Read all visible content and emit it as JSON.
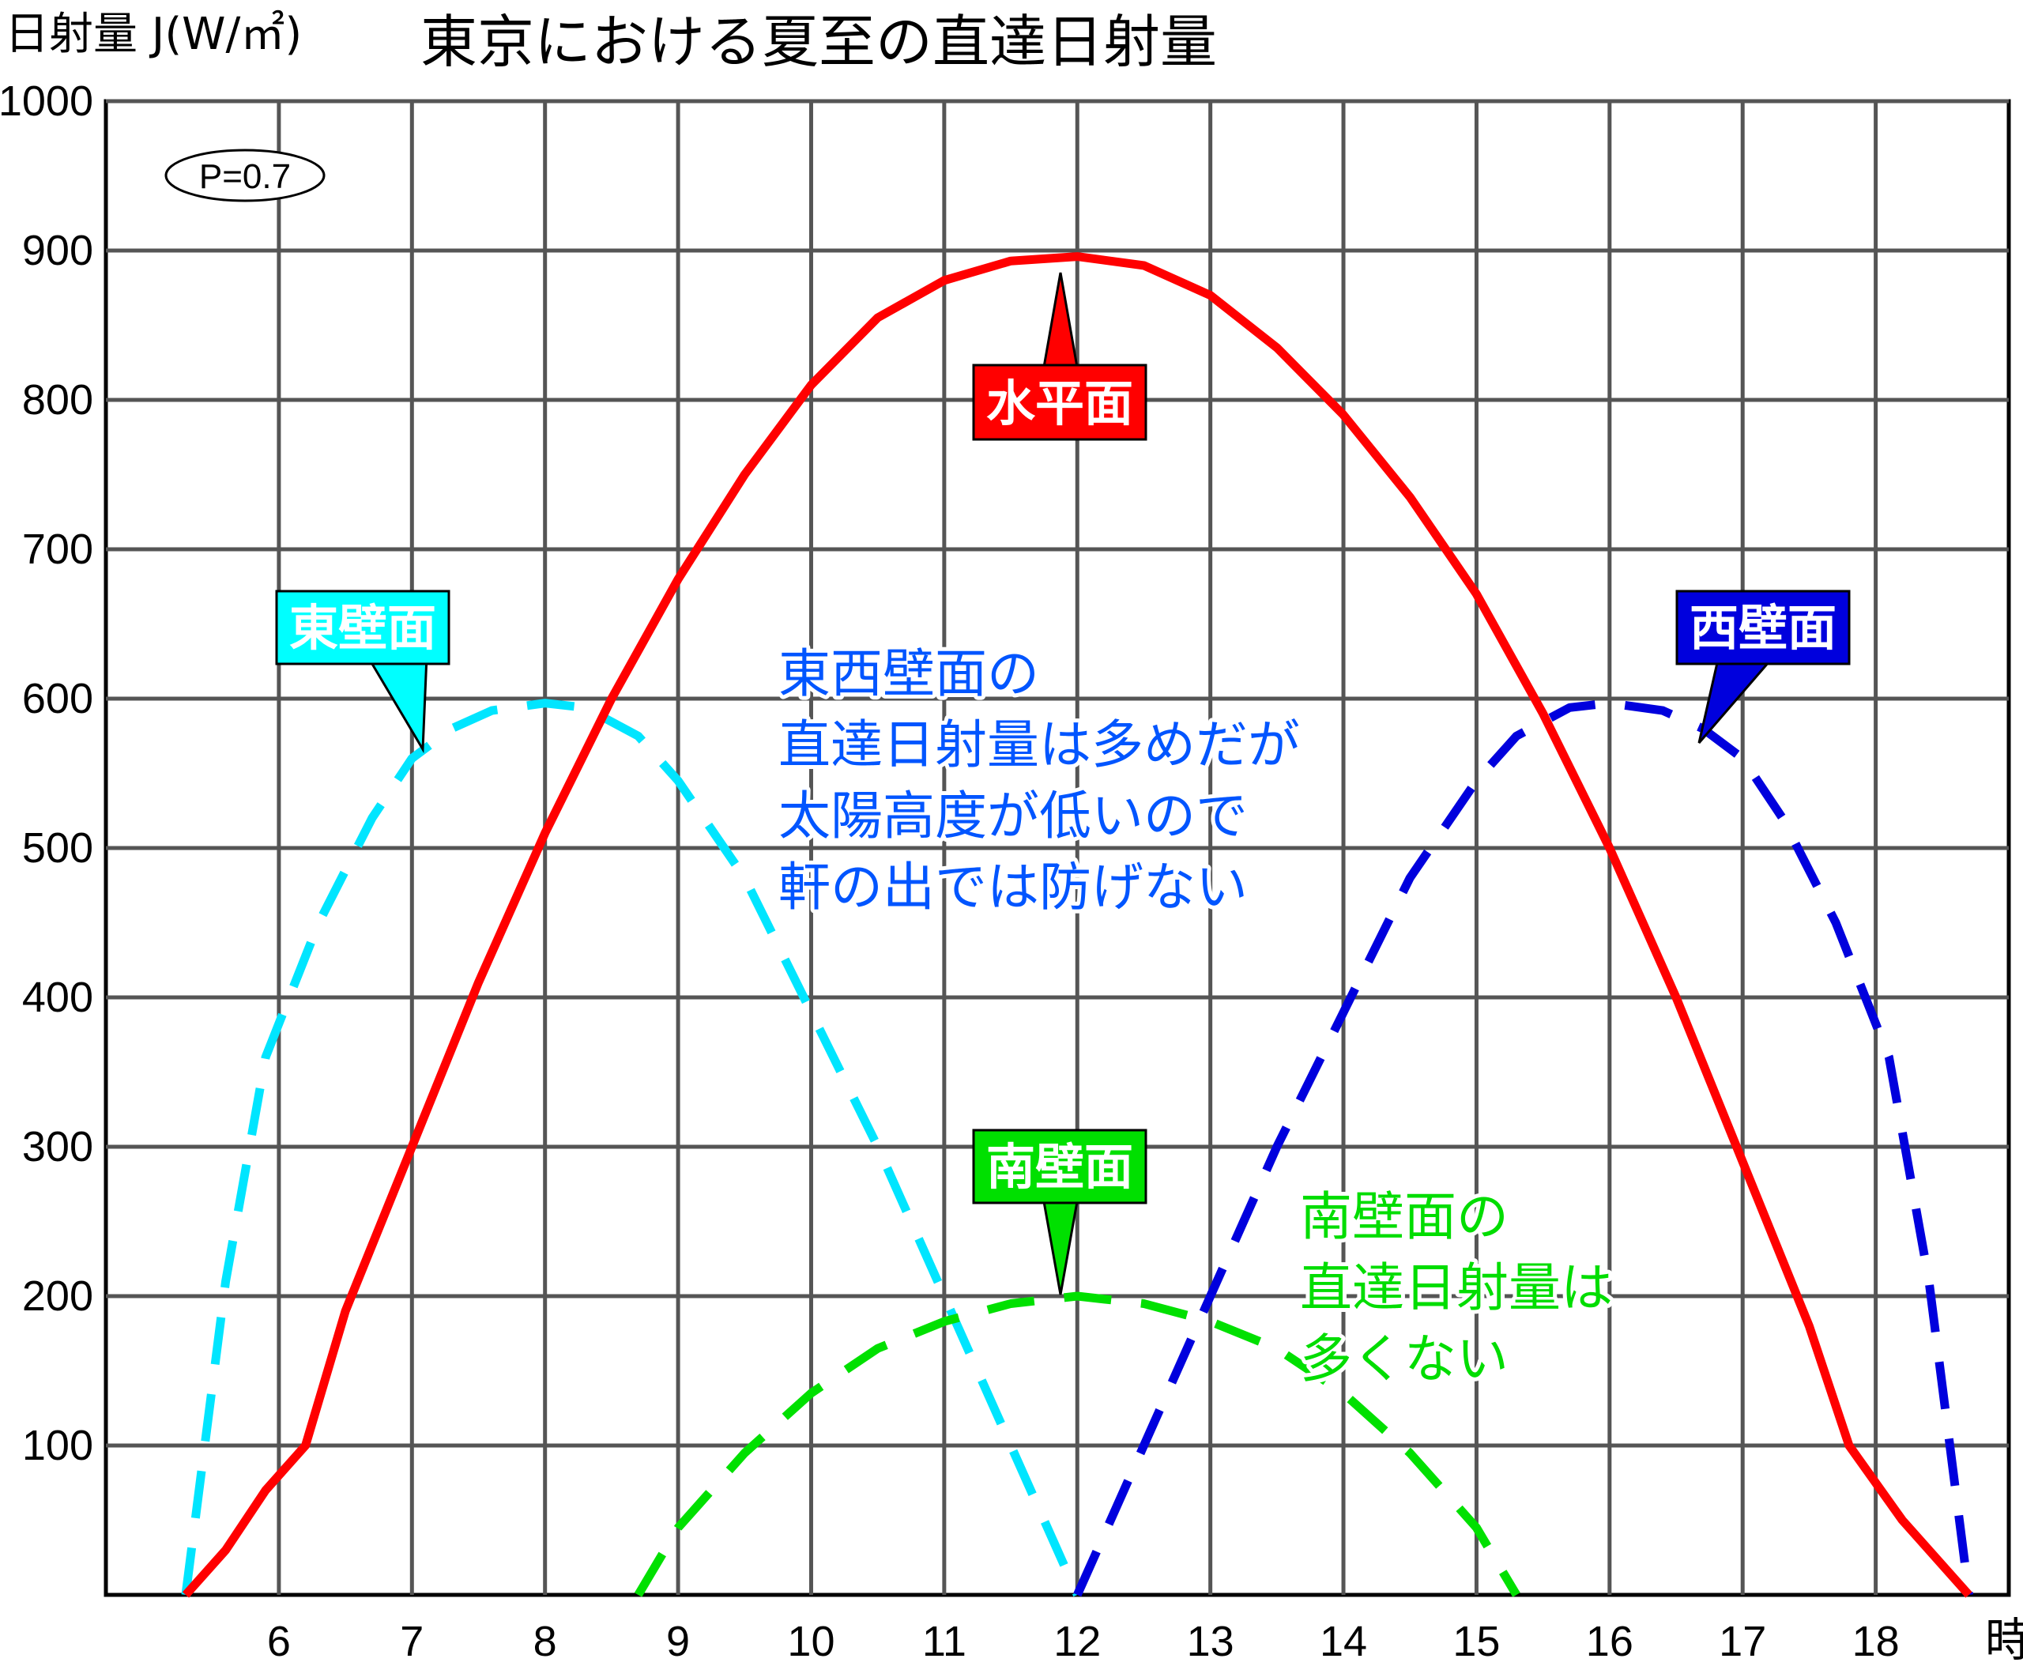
{
  "header": {
    "ylabel": "日射量 J(W/㎡)",
    "title": "東京における夏至の直達日射量"
  },
  "chart_data": {
    "type": "line",
    "title": "東京における夏至の直達日射量",
    "ylabel": "日射量 J(W/㎡)",
    "xlabel": "時",
    "xlim": [
      4.7,
      19.0
    ],
    "ylim": [
      0,
      1000
    ],
    "x_ticks": [
      "6",
      "7",
      "8",
      "9",
      "10",
      "11",
      "12",
      "13",
      "14",
      "15",
      "16",
      "17",
      "18"
    ],
    "y_ticks": [
      "100",
      "200",
      "300",
      "400",
      "500",
      "600",
      "700",
      "800",
      "900",
      "1000"
    ],
    "grid": true,
    "annotation_param": "P=0.7",
    "colors": {
      "horizontal": "#ff0000",
      "east": "#00e5ff",
      "west": "#0000dd",
      "south": "#00e000"
    },
    "series": [
      {
        "name": "水平面",
        "style": "solid",
        "points": [
          [
            5.3,
            0
          ],
          [
            5.6,
            30
          ],
          [
            5.9,
            70
          ],
          [
            6.2,
            100
          ],
          [
            6.5,
            190
          ],
          [
            7.0,
            300
          ],
          [
            7.5,
            410
          ],
          [
            8.0,
            510
          ],
          [
            8.5,
            600
          ],
          [
            9.0,
            680
          ],
          [
            9.5,
            750
          ],
          [
            10.0,
            810
          ],
          [
            10.5,
            855
          ],
          [
            11.0,
            880
          ],
          [
            11.5,
            893
          ],
          [
            12.0,
            896
          ],
          [
            12.5,
            890
          ],
          [
            13.0,
            870
          ],
          [
            13.5,
            835
          ],
          [
            14.0,
            790
          ],
          [
            14.5,
            735
          ],
          [
            15.0,
            670
          ],
          [
            15.5,
            590
          ],
          [
            16.0,
            500
          ],
          [
            16.5,
            400
          ],
          [
            17.0,
            290
          ],
          [
            17.5,
            180
          ],
          [
            17.8,
            100
          ],
          [
            18.2,
            50
          ],
          [
            18.7,
            0
          ]
        ]
      },
      {
        "name": "東壁面",
        "style": "dashed",
        "points": [
          [
            5.3,
            0
          ],
          [
            5.6,
            210
          ],
          [
            5.9,
            360
          ],
          [
            6.3,
            450
          ],
          [
            6.7,
            520
          ],
          [
            7.0,
            560
          ],
          [
            7.3,
            580
          ],
          [
            7.6,
            592
          ],
          [
            8.0,
            597
          ],
          [
            8.3,
            594
          ],
          [
            8.7,
            575
          ],
          [
            9.0,
            545
          ],
          [
            9.5,
            480
          ],
          [
            10.0,
            390
          ],
          [
            10.5,
            300
          ],
          [
            11.0,
            200
          ],
          [
            11.5,
            100
          ],
          [
            12.0,
            0
          ]
        ]
      },
      {
        "name": "西壁面",
        "style": "dashed",
        "points": [
          [
            12.0,
            0
          ],
          [
            12.5,
            100
          ],
          [
            13.0,
            200
          ],
          [
            13.5,
            300
          ],
          [
            14.0,
            390
          ],
          [
            14.5,
            480
          ],
          [
            15.0,
            545
          ],
          [
            15.3,
            575
          ],
          [
            15.7,
            594
          ],
          [
            16.0,
            597
          ],
          [
            16.4,
            592
          ],
          [
            16.7,
            580
          ],
          [
            17.0,
            560
          ],
          [
            17.3,
            520
          ],
          [
            17.7,
            450
          ],
          [
            18.1,
            360
          ],
          [
            18.4,
            210
          ],
          [
            18.7,
            0
          ]
        ]
      },
      {
        "name": "南壁面",
        "style": "dashed",
        "points": [
          [
            8.7,
            0
          ],
          [
            9.0,
            45
          ],
          [
            9.5,
            95
          ],
          [
            10.0,
            135
          ],
          [
            10.5,
            165
          ],
          [
            11.0,
            183
          ],
          [
            11.5,
            195
          ],
          [
            12.0,
            200
          ],
          [
            12.5,
            195
          ],
          [
            13.0,
            183
          ],
          [
            13.5,
            165
          ],
          [
            14.0,
            135
          ],
          [
            14.5,
            95
          ],
          [
            15.0,
            45
          ],
          [
            15.3,
            0
          ]
        ]
      }
    ]
  },
  "callouts": {
    "horizontal": "水平面",
    "east": "東壁面",
    "west": "西壁面",
    "south": "南壁面"
  },
  "notes": {
    "east_west": [
      "東西壁面の",
      "直達日射量は多めだが",
      "太陽高度が低いので",
      "軒の出では防げない"
    ],
    "south": [
      "南壁面の",
      "直達日射量は",
      "多くない"
    ]
  }
}
